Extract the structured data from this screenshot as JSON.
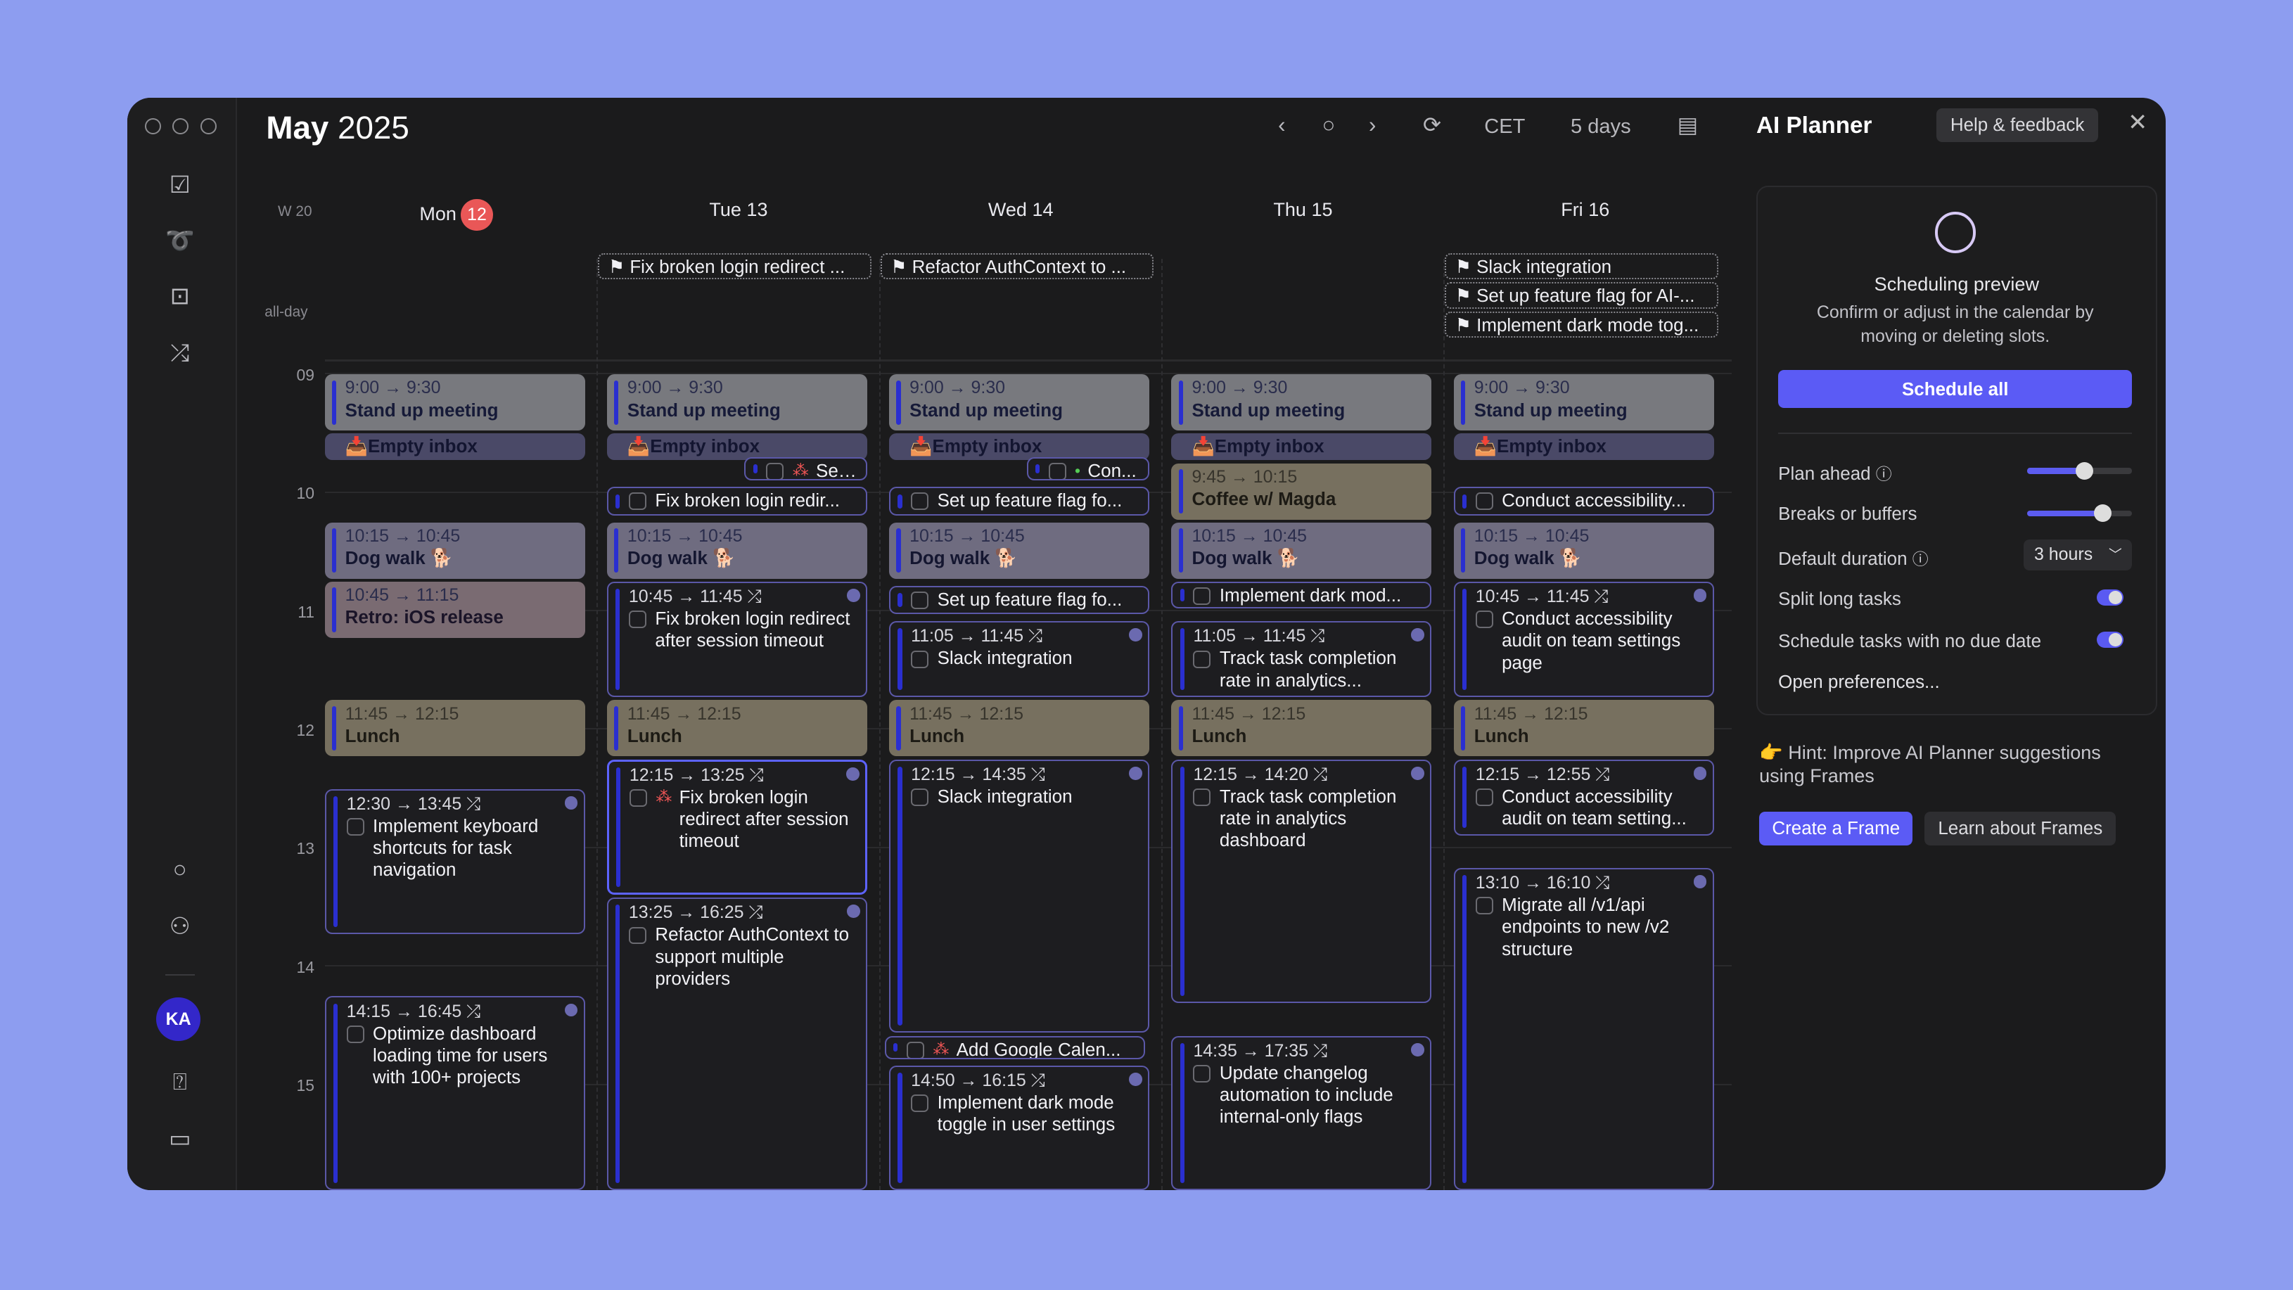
{
  "header": {
    "month": "May",
    "year": "2025",
    "timezone": "CET",
    "view": "5 days"
  },
  "week": "W 20",
  "allday_label": "all-day",
  "days": [
    {
      "label": "Mon",
      "num": "12",
      "today": true
    },
    {
      "label": "Tue 13"
    },
    {
      "label": "Wed 14"
    },
    {
      "label": "Thu 15"
    },
    {
      "label": "Fri 16"
    }
  ],
  "hours": [
    "09",
    "10",
    "11",
    "12",
    "13",
    "14",
    "15"
  ],
  "allday_events": [
    {
      "day": 1,
      "title": "Fix broken login redirect ..."
    },
    {
      "day": 2,
      "title": "Refactor AuthContext to ..."
    },
    {
      "day": 4,
      "title": "Slack integration"
    },
    {
      "day": 4,
      "title": "Set up feature flag for AI-..."
    },
    {
      "day": 4,
      "title": "Implement dark mode tog..."
    }
  ],
  "events": [
    {
      "day": 0,
      "start": "9:00",
      "end": "9:30",
      "title": "Stand up meeting",
      "kind": "meeting",
      "show_time": true
    },
    {
      "day": 0,
      "start": "9:30",
      "end": "9:45",
      "title": "Empty inbox",
      "kind": "inbox"
    },
    {
      "day": 0,
      "start": "10:15",
      "end": "10:45",
      "title": "Dog walk 🐕",
      "kind": "walk",
      "show_time": true
    },
    {
      "day": 0,
      "start": "10:45",
      "end": "11:15",
      "title": "Retro: iOS release",
      "kind": "retro",
      "show_time": true
    },
    {
      "day": 0,
      "start": "11:45",
      "end": "12:15",
      "title": "Lunch",
      "kind": "lunch",
      "show_time": true
    },
    {
      "day": 0,
      "start": "12:30",
      "end": "13:45",
      "title": "Implement keyboard shortcuts for task navigation",
      "kind": "task",
      "show_time": true
    },
    {
      "day": 0,
      "start": "14:15",
      "end": "16:45",
      "title": "Optimize dashboard loading time for users with 100+ projects",
      "kind": "task",
      "show_time": true
    },
    {
      "day": 1,
      "start": "9:00",
      "end": "9:30",
      "title": "Stand up meeting",
      "kind": "meeting",
      "show_time": true
    },
    {
      "day": 1,
      "start": "9:30",
      "end": "9:45",
      "title": "Empty inbox",
      "kind": "inbox"
    },
    {
      "day": 1,
      "start": "9:42",
      "end": "9:55",
      "title": "Set ...",
      "kind": "task",
      "mini": true,
      "marker": "red"
    },
    {
      "day": 1,
      "start": "9:57",
      "end": "10:13",
      "title": "Fix broken login redir...",
      "kind": "task"
    },
    {
      "day": 1,
      "start": "10:15",
      "end": "10:45",
      "title": "Dog walk 🐕",
      "kind": "walk",
      "show_time": true
    },
    {
      "day": 1,
      "start": "10:45",
      "end": "11:45",
      "title": "Fix broken login redirect after session timeout",
      "kind": "task",
      "show_time": true
    },
    {
      "day": 1,
      "start": "11:45",
      "end": "12:15",
      "title": "Lunch",
      "kind": "lunch",
      "show_time": true
    },
    {
      "day": 1,
      "start": "12:15",
      "end": "13:25",
      "title": "Fix broken login redirect after session timeout",
      "kind": "task",
      "show_time": true,
      "selected": true,
      "marker": "red"
    },
    {
      "day": 1,
      "start": "13:25",
      "end": "16:25",
      "title": "Refactor AuthContext to support multiple providers",
      "kind": "task",
      "show_time": true
    },
    {
      "day": 2,
      "start": "9:00",
      "end": "9:30",
      "title": "Stand up meeting",
      "kind": "meeting",
      "show_time": true
    },
    {
      "day": 2,
      "start": "9:30",
      "end": "9:45",
      "title": "Empty inbox",
      "kind": "inbox"
    },
    {
      "day": 2,
      "start": "9:42",
      "end": "9:55",
      "title": "Con...",
      "kind": "task",
      "mini": true,
      "marker": "green"
    },
    {
      "day": 2,
      "start": "9:57",
      "end": "10:13",
      "title": "Set up feature flag fo...",
      "kind": "task"
    },
    {
      "day": 2,
      "start": "10:15",
      "end": "10:45",
      "title": "Dog walk 🐕",
      "kind": "walk",
      "show_time": true
    },
    {
      "day": 2,
      "start": "10:47",
      "end": "11:03",
      "title": "Set up feature flag fo...",
      "kind": "task"
    },
    {
      "day": 2,
      "start": "11:05",
      "end": "11:45",
      "title": "Slack integration",
      "kind": "task",
      "show_time": true
    },
    {
      "day": 2,
      "start": "11:45",
      "end": "12:15",
      "title": "Lunch",
      "kind": "lunch",
      "show_time": true
    },
    {
      "day": 2,
      "start": "12:15",
      "end": "14:35",
      "title": "Slack integration",
      "kind": "task",
      "show_time": true
    },
    {
      "day": 2,
      "start": "14:35",
      "end": "14:48",
      "title": "Add Google Calen...",
      "kind": "task",
      "marker": "red"
    },
    {
      "day": 2,
      "start": "14:50",
      "end": "16:15",
      "title": "Implement dark mode toggle in user settings",
      "kind": "task",
      "show_time": true
    },
    {
      "day": 3,
      "start": "9:00",
      "end": "9:30",
      "title": "Stand up meeting",
      "kind": "meeting",
      "show_time": true
    },
    {
      "day": 3,
      "start": "9:30",
      "end": "9:45",
      "title": "Empty inbox",
      "kind": "inbox"
    },
    {
      "day": 3,
      "start": "9:45",
      "end": "10:15",
      "title": "Coffee w/ Magda",
      "kind": "lunch",
      "show_time": true
    },
    {
      "day": 3,
      "start": "10:15",
      "end": "10:45",
      "title": "Dog walk 🐕",
      "kind": "walk",
      "show_time": true
    },
    {
      "day": 3,
      "start": "10:45",
      "end": "11:00",
      "title": "Implement dark mod...",
      "kind": "task"
    },
    {
      "day": 3,
      "start": "11:05",
      "end": "11:45",
      "title": "Track task completion rate in analytics...",
      "kind": "task",
      "show_time": true
    },
    {
      "day": 3,
      "start": "11:45",
      "end": "12:15",
      "title": "Lunch",
      "kind": "lunch",
      "show_time": true
    },
    {
      "day": 3,
      "start": "12:15",
      "end": "14:20",
      "title": "Track task completion rate in analytics dashboard",
      "kind": "task",
      "show_time": true
    },
    {
      "day": 3,
      "start": "14:35",
      "end": "17:35",
      "title": "Update changelog automation to include internal-only flags",
      "kind": "task",
      "show_time": true
    },
    {
      "day": 4,
      "start": "9:00",
      "end": "9:30",
      "title": "Stand up meeting",
      "kind": "meeting",
      "show_time": true
    },
    {
      "day": 4,
      "start": "9:30",
      "end": "9:45",
      "title": "Empty inbox",
      "kind": "inbox"
    },
    {
      "day": 4,
      "start": "9:57",
      "end": "10:13",
      "title": "Conduct accessibility...",
      "kind": "task"
    },
    {
      "day": 4,
      "start": "10:15",
      "end": "10:45",
      "title": "Dog walk 🐕",
      "kind": "walk",
      "show_time": true
    },
    {
      "day": 4,
      "start": "10:45",
      "end": "11:45",
      "title": "Conduct accessibility audit on team settings page",
      "kind": "task",
      "show_time": true
    },
    {
      "day": 4,
      "start": "11:45",
      "end": "12:15",
      "title": "Lunch",
      "kind": "lunch",
      "show_time": true
    },
    {
      "day": 4,
      "start": "12:15",
      "end": "12:55",
      "title": "Conduct accessibility audit on team setting...",
      "kind": "task",
      "show_time": true
    },
    {
      "day": 4,
      "start": "13:10",
      "end": "16:10",
      "title": "Migrate all /v1/api endpoints to new /v2 structure",
      "kind": "task",
      "show_time": true
    }
  ],
  "planner": {
    "title": "AI Planner",
    "help": "Help & feedback",
    "preview_title": "Scheduling preview",
    "preview_desc": "Confirm or adjust in the calendar by moving or deleting slots.",
    "schedule_all": "Schedule all",
    "plan_ahead": "Plan ahead",
    "plan_ahead_value": 0.55,
    "breaks": "Breaks or buffers",
    "breaks_value": 0.72,
    "default_duration": "Default duration",
    "duration_value": "3 hours",
    "split": "Split long tasks",
    "split_on": true,
    "no_due": "Schedule tasks with no due date",
    "no_due_on": true,
    "open_prefs": "Open preferences...",
    "hint": "👉 Hint: Improve AI Planner suggestions using Frames",
    "create_frame": "Create a Frame",
    "learn_frames": "Learn about Frames"
  },
  "sidebar": {
    "avatar": "KA"
  },
  "colors": {
    "accent": "#5b5bf5",
    "today": "#e95757",
    "background": "#8d9df0",
    "task_bar": "#2a2fd0"
  }
}
